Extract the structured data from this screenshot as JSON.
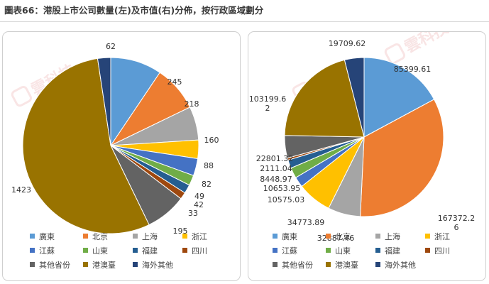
{
  "title": "圖表66：港股上市公司數量(左)及市值(右)分佈，按行政區域劃分",
  "watermark": "雲科技",
  "legend_entries": [
    "廣東",
    "北京",
    "上海",
    "浙江",
    "江蘇",
    "山東",
    "福建",
    "四川",
    "其他省份",
    "港澳臺",
    "海外其他"
  ],
  "colors": [
    "#5b9bd5",
    "#ed7d31",
    "#a5a5a5",
    "#ffc000",
    "#4472c4",
    "#70ad47",
    "#255e91",
    "#9e480e",
    "#636363",
    "#997300",
    "#264478"
  ],
  "chart_data": [
    {
      "type": "pie",
      "title": "",
      "categories": [
        "廣東",
        "北京",
        "上海",
        "浙江",
        "江蘇",
        "山東",
        "福建",
        "四川",
        "其他省份",
        "港澳臺",
        "海外其他"
      ],
      "values": [
        245,
        218,
        160,
        88,
        82,
        49,
        42,
        33,
        195,
        1423,
        62
      ],
      "data_labels": [
        "245",
        "218",
        "160",
        "88",
        "82",
        "49",
        "42",
        "33",
        "195",
        "1423",
        "62"
      ],
      "legend": "bottom"
    },
    {
      "type": "pie",
      "title": "",
      "categories": [
        "廣東",
        "北京",
        "上海",
        "浙江",
        "江蘇",
        "山東",
        "福建",
        "四川",
        "其他省份",
        "港澳臺",
        "海外其他"
      ],
      "values": [
        85399.61,
        167372.26,
        32887.46,
        34773.89,
        10575.03,
        10653.95,
        8448.97,
        2111.04,
        22801.32,
        103199.62,
        19709.62
      ],
      "data_labels": [
        "85399.61",
        "167372.26",
        "32887.46",
        "34773.89",
        "10575.03",
        "10653.95",
        "8448.97",
        "2111.04",
        "22801.32",
        "103199.62",
        "19709.62"
      ],
      "legend": "bottom"
    }
  ]
}
